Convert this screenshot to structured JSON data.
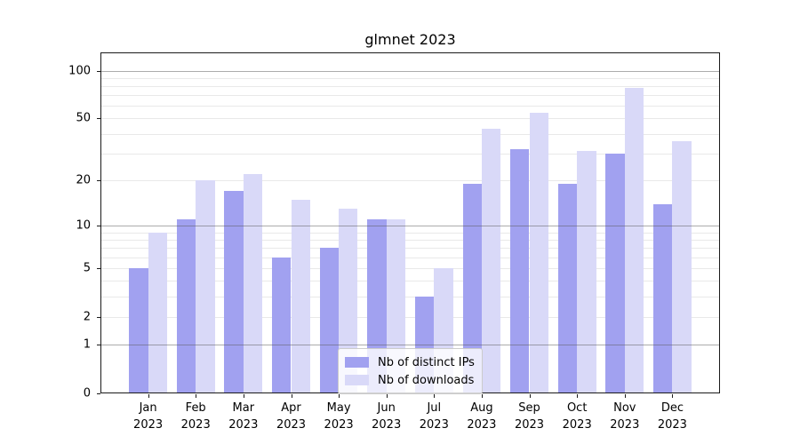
{
  "figure": {
    "title": "glmnet 2023"
  },
  "chart_data": {
    "type": "bar",
    "title": "glmnet 2023",
    "categories": [
      "Jan 2023",
      "Feb 2023",
      "Mar 2023",
      "Apr 2023",
      "May 2023",
      "Jun 2023",
      "Jul 2023",
      "Aug 2023",
      "Sep 2023",
      "Oct 2023",
      "Nov 2023",
      "Dec 2023"
    ],
    "series": [
      {
        "name": "Nb of distinct IPs",
        "color": "#a1a1f0",
        "values": [
          5,
          11,
          17,
          6,
          7,
          11,
          3,
          19,
          32,
          19,
          30,
          14
        ]
      },
      {
        "name": "Nb of downloads",
        "color": "#d9d9f8",
        "values": [
          9,
          20,
          22,
          15,
          13,
          11,
          5,
          43,
          54,
          31,
          78,
          36
        ]
      }
    ],
    "xlabel": "",
    "ylabel": "",
    "yscale": "log10(1+y)",
    "ylim": [
      0,
      130
    ],
    "yticks": [
      0,
      1,
      2,
      5,
      10,
      20,
      50,
      100
    ],
    "major_gridlines": [
      1,
      10,
      100
    ],
    "minor_gridlines": [
      2,
      3,
      4,
      5,
      6,
      7,
      8,
      9,
      20,
      30,
      40,
      50,
      60,
      70,
      80,
      90
    ],
    "grid": true,
    "legend_position": "lower center",
    "bar_group_width": 0.8
  }
}
